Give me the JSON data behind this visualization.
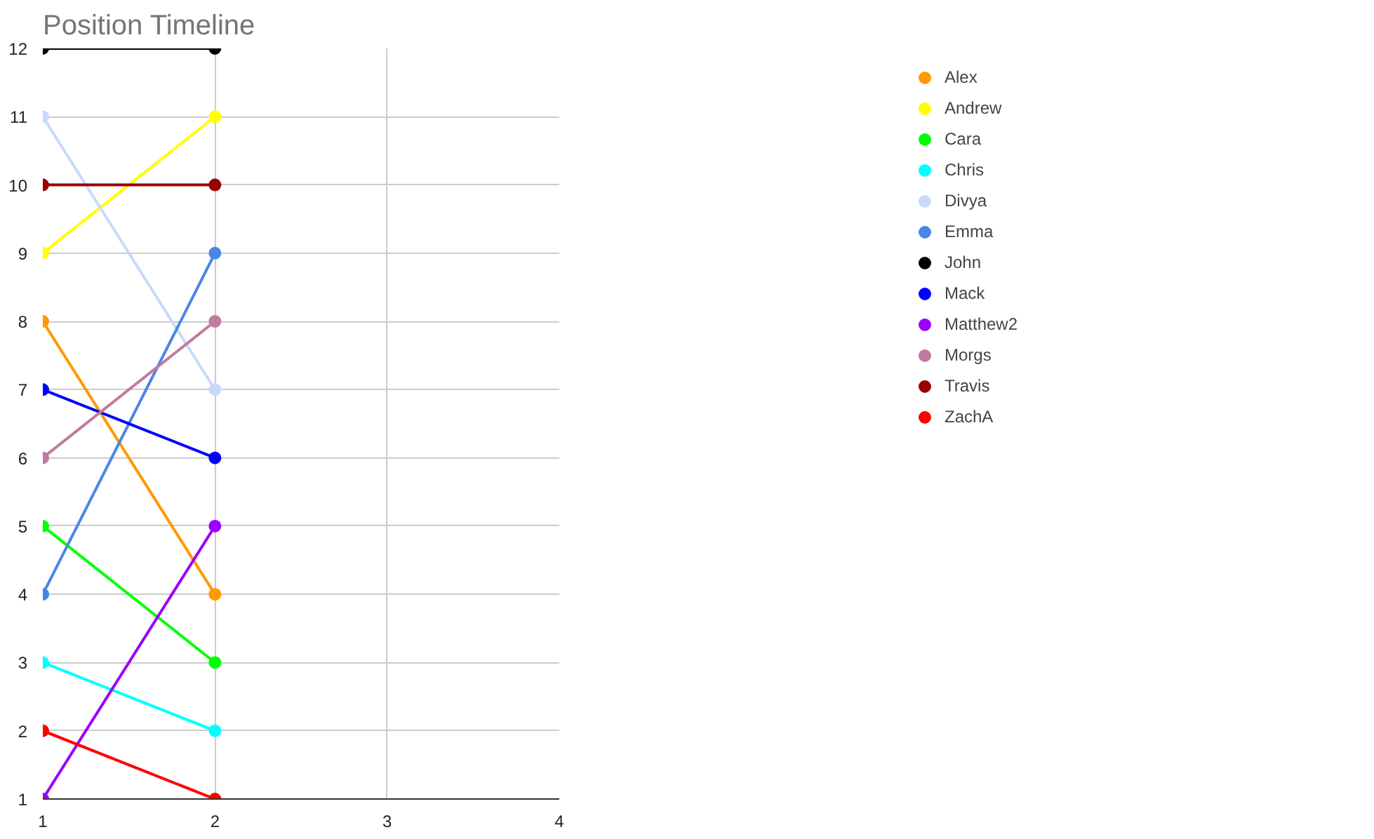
{
  "chart_data": {
    "type": "line",
    "title": "Position Timeline",
    "x": [
      1,
      2
    ],
    "series": [
      {
        "name": "Alex",
        "color": "#ff9900",
        "values": [
          8,
          4
        ]
      },
      {
        "name": "Andrew",
        "color": "#ffff00",
        "values": [
          9,
          11
        ]
      },
      {
        "name": "Cara",
        "color": "#00ff00",
        "values": [
          5,
          3
        ]
      },
      {
        "name": "Chris",
        "color": "#00ffff",
        "values": [
          3,
          2
        ]
      },
      {
        "name": "Divya",
        "color": "#c9daf8",
        "values": [
          11,
          7
        ]
      },
      {
        "name": "Emma",
        "color": "#4a86e8",
        "values": [
          4,
          9
        ]
      },
      {
        "name": "John",
        "color": "#000000",
        "values": [
          12,
          12
        ]
      },
      {
        "name": "Mack",
        "color": "#0000ff",
        "values": [
          7,
          6
        ]
      },
      {
        "name": "Matthew2",
        "color": "#9900ff",
        "values": [
          1,
          5
        ]
      },
      {
        "name": "Morgs",
        "color": "#c27ba0",
        "values": [
          6,
          8
        ]
      },
      {
        "name": "Travis",
        "color": "#990000",
        "values": [
          10,
          10
        ]
      },
      {
        "name": "ZachA",
        "color": "#ff0000",
        "values": [
          2,
          1
        ]
      }
    ],
    "xlim": [
      1,
      4
    ],
    "xticks": [
      1,
      2,
      3,
      4
    ],
    "ylim": [
      1,
      12
    ],
    "yticks": [
      1,
      2,
      3,
      4,
      5,
      6,
      7,
      8,
      9,
      10,
      11,
      12
    ],
    "grid": true,
    "legend": "top right",
    "marker": "circle",
    "line_style": "solid"
  }
}
